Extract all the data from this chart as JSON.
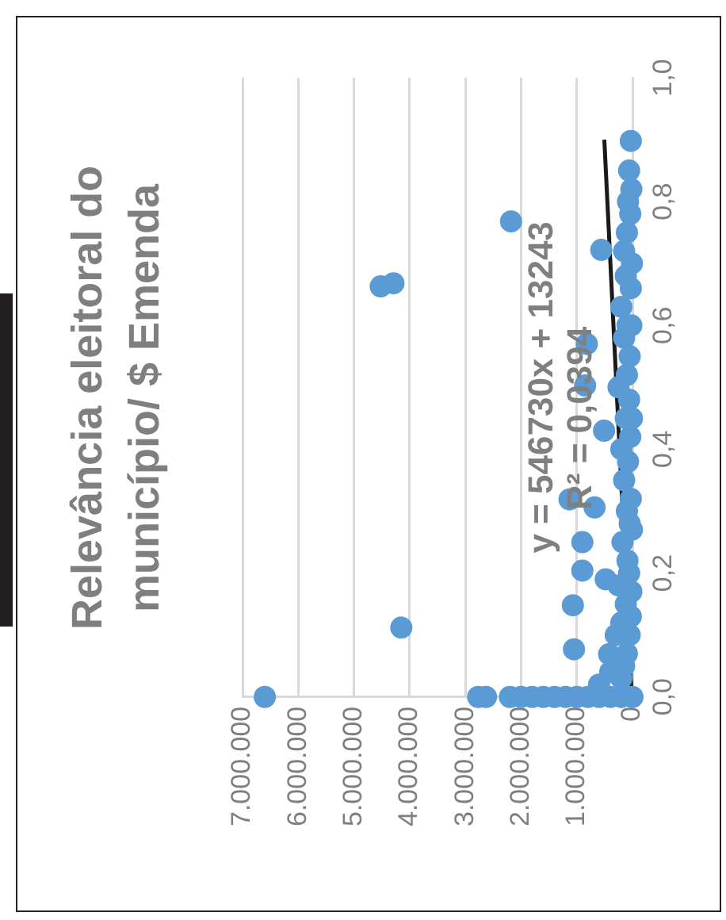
{
  "chart_data": {
    "type": "scatter",
    "title": [
      "Relevância eleitoral do",
      "município/ $ Emenda"
    ],
    "annotations": [
      "y = 546730x + 13243",
      "R² = 0,0394"
    ],
    "ylim": [
      0,
      1
    ],
    "yticks": [
      {
        "value": 0,
        "label": "0,0"
      },
      {
        "value": 0.2,
        "label": "0,2"
      },
      {
        "value": 0.4,
        "label": "0,4"
      },
      {
        "value": 0.6,
        "label": "0,6"
      },
      {
        "value": 0.8,
        "label": "0,8"
      },
      {
        "value": 1,
        "label": "1,0"
      }
    ],
    "xlim": [
      7000000,
      0
    ],
    "xticks": [
      0,
      {
        "value": 1000000,
        "label": "1.000.000"
      },
      {
        "value": 2000000,
        "label": "2.000.000"
      },
      {
        "value": 3000000,
        "label": "3.000.000"
      },
      {
        "value": 4000000,
        "label": "4.000.000"
      },
      {
        "value": 5000000,
        "label": "5.000.000"
      },
      {
        "value": 6000000,
        "label": "6.000.000"
      },
      {
        "value": 7000000,
        "label": "7.000.000"
      }
    ],
    "grid": "x",
    "marker": "circle",
    "legend": false,
    "series": [
      {
        "type": "scatter",
        "color": "#5b9bd5",
        "values": [
          0,
          0,
          0,
          0,
          0,
          0,
          0,
          0,
          0,
          0,
          0,
          0,
          0,
          0,
          0,
          0.112,
          0.663,
          0.668,
          0.768,
          0.319,
          0.306,
          0.25,
          0.204,
          0.19,
          0.148,
          0.077,
          0.069,
          0.503,
          0.57,
          0.722,
          0.43,
          0.898,
          0.85,
          0.82,
          0.8,
          0.78,
          0.75,
          0.72,
          0.68,
          0.66,
          0.63,
          0.6,
          0.58,
          0.55,
          0.52,
          0.5,
          0.48,
          0.45,
          0.42,
          0.4,
          0.38,
          0.35,
          0.32,
          0.3,
          0.28,
          0.25,
          0.22,
          0.2,
          0.18,
          0.15,
          0.12,
          0.1,
          0.04,
          0.02,
          0.03,
          0.05,
          0.07,
          0.1,
          0.13,
          0.17,
          0.27,
          0.45,
          0.6,
          0.7
        ],
        "x": [
          6600000,
          2770000,
          2630000,
          2200000,
          2000000,
          1800000,
          1600000,
          1400000,
          1200000,
          1000000,
          800000,
          600000,
          400000,
          200000,
          0,
          4150000,
          4520000,
          4290000,
          2180000,
          1130000,
          680000,
          900000,
          900000,
          480000,
          1070000,
          1050000,
          420000,
          850000,
          820000,
          560000,
          510000,
          30000,
          60000,
          20000,
          80000,
          40000,
          100000,
          150000,
          120000,
          30000,
          200000,
          90000,
          150000,
          50000,
          100000,
          250000,
          60000,
          120000,
          40000,
          200000,
          80000,
          150000,
          30000,
          100000,
          50000,
          180000,
          90000,
          60000,
          250000,
          120000,
          200000,
          300000,
          400000,
          600000,
          200000,
          150000,
          100000,
          50000,
          30000,
          20000,
          10000,
          10000,
          20000,
          10000
        ]
      },
      {
        "type": "line",
        "color": "#1a1a1a",
        "marker": "none",
        "x": [
          13243,
          505300
        ],
        "values": [
          0,
          0.9
        ]
      }
    ]
  }
}
